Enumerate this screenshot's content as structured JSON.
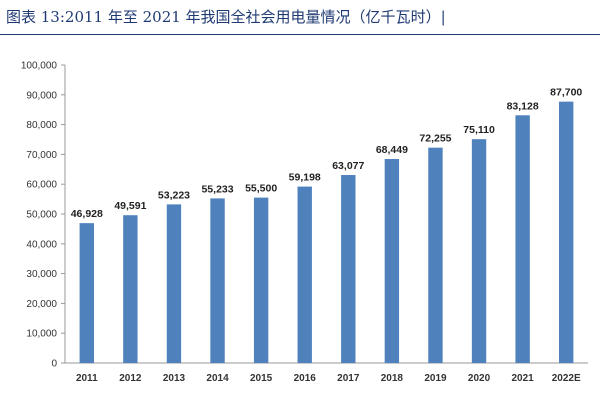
{
  "page": {
    "title": "图表 13:2011 年至 2021 年我国全社会用电量情况（亿千瓦时）|"
  },
  "chart_data": {
    "type": "bar",
    "title": "图表 13:2011 年至 2021 年我国全社会用电量情况（亿千瓦时）",
    "categories": [
      "2011",
      "2012",
      "2013",
      "2014",
      "2015",
      "2016",
      "2017",
      "2018",
      "2019",
      "2020",
      "2021",
      "2022E"
    ],
    "values": [
      46928,
      49591,
      53223,
      55233,
      55500,
      59198,
      63077,
      68449,
      72255,
      75110,
      83128,
      87700
    ],
    "value_labels": [
      "46,928",
      "49,591",
      "53,223",
      "55,233",
      "55,500",
      "59,198",
      "63,077",
      "68,449",
      "72,255",
      "75,110",
      "83,128",
      "87,700"
    ],
    "yticks": [
      "0",
      "10,000",
      "20,000",
      "30,000",
      "40,000",
      "50,000",
      "60,000",
      "70,000",
      "80,000",
      "90,000",
      "100,000"
    ],
    "ylim": [
      0,
      100000
    ],
    "xlabel": "",
    "ylabel": "",
    "grid": false,
    "legend": "none",
    "bar_color": "#4f81bd",
    "axis_color": "#999999"
  }
}
